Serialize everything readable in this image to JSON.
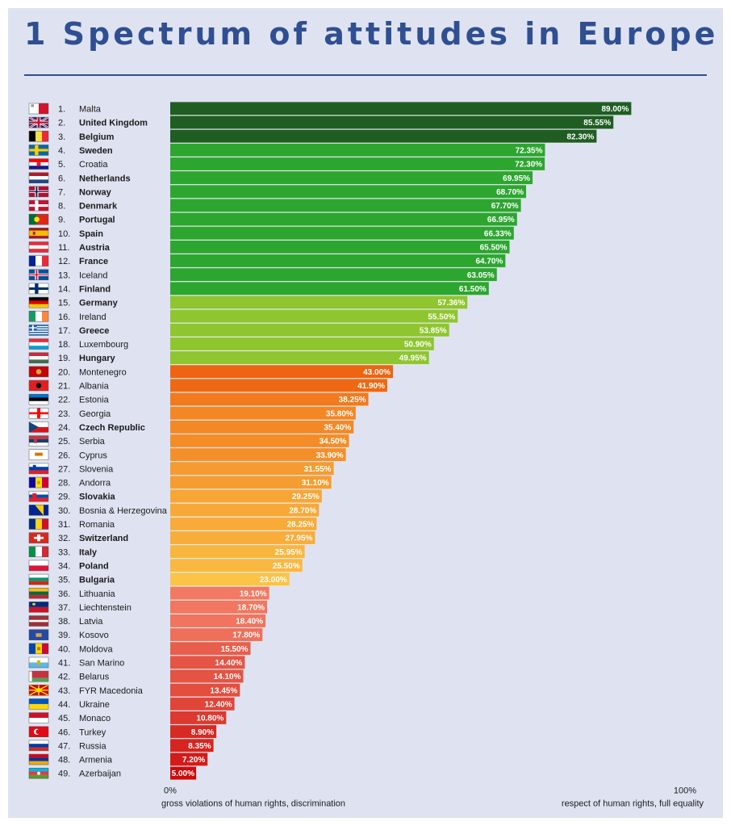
{
  "title": "1 Spectrum of attitudes in Europe",
  "colors": {
    "title": "#2f4f92",
    "background": "#dfe3f1",
    "tier_darkgreen": "#1f5d22",
    "tier_green": "#2da630",
    "tier_lime": "#8fc52f",
    "tier_orange_start": "#ee6411",
    "tier_orange_end": "#fbc447",
    "tier_red_start": "#f27a62",
    "tier_red_end": "#cc0b0b"
  },
  "chart_data": {
    "type": "bar",
    "orientation": "horizontal",
    "title": "1 Spectrum of attitudes in Europe",
    "xlim": [
      0,
      100
    ],
    "x_ticks": [
      "0%",
      "100%"
    ],
    "x_caption_left": "gross violations of human rights, discrimination",
    "x_caption_right": "respect of human rights, full equality",
    "grid": false,
    "legend": "none",
    "rows": [
      {
        "rank": "1.",
        "country": "Malta",
        "bold": false,
        "value": 89.0,
        "label": "89.00%",
        "flag": "malta-flag-icon"
      },
      {
        "rank": "2.",
        "country": "United Kingdom",
        "bold": true,
        "value": 85.55,
        "label": "85.55%",
        "flag": "united-kingdom-flag-icon"
      },
      {
        "rank": "3.",
        "country": "Belgium",
        "bold": true,
        "value": 82.3,
        "label": "82.30%",
        "flag": "belgium-flag-icon"
      },
      {
        "rank": "4.",
        "country": "Sweden",
        "bold": true,
        "value": 72.35,
        "label": "72.35%",
        "flag": "sweden-flag-icon"
      },
      {
        "rank": "5.",
        "country": "Croatia",
        "bold": false,
        "value": 72.3,
        "label": "72.30%",
        "flag": "croatia-flag-icon"
      },
      {
        "rank": "6.",
        "country": "Netherlands",
        "bold": true,
        "value": 69.95,
        "label": "69.95%",
        "flag": "netherlands-flag-icon"
      },
      {
        "rank": "7.",
        "country": "Norway",
        "bold": true,
        "value": 68.7,
        "label": "68.70%",
        "flag": "norway-flag-icon"
      },
      {
        "rank": "8.",
        "country": "Denmark",
        "bold": true,
        "value": 67.7,
        "label": "67.70%",
        "flag": "denmark-flag-icon"
      },
      {
        "rank": "9.",
        "country": "Portugal",
        "bold": true,
        "value": 66.95,
        "label": "66.95%",
        "flag": "portugal-flag-icon"
      },
      {
        "rank": "10.",
        "country": "Spain",
        "bold": true,
        "value": 66.33,
        "label": "66.33%",
        "flag": "spain-flag-icon"
      },
      {
        "rank": "11.",
        "country": "Austria",
        "bold": true,
        "value": 65.5,
        "label": "65.50%",
        "flag": "austria-flag-icon"
      },
      {
        "rank": "12.",
        "country": "France",
        "bold": true,
        "value": 64.7,
        "label": "64.70%",
        "flag": "france-flag-icon"
      },
      {
        "rank": "13.",
        "country": "Iceland",
        "bold": false,
        "value": 63.05,
        "label": "63.05%",
        "flag": "iceland-flag-icon"
      },
      {
        "rank": "14.",
        "country": "Finland",
        "bold": true,
        "value": 61.5,
        "label": "61.50%",
        "flag": "finland-flag-icon"
      },
      {
        "rank": "15.",
        "country": "Germany",
        "bold": true,
        "value": 57.36,
        "label": "57.36%",
        "flag": "germany-flag-icon"
      },
      {
        "rank": "16.",
        "country": "Ireland",
        "bold": false,
        "value": 55.5,
        "label": "55.50%",
        "flag": "ireland-flag-icon"
      },
      {
        "rank": "17.",
        "country": "Greece",
        "bold": true,
        "value": 53.85,
        "label": "53.85%",
        "flag": "greece-flag-icon"
      },
      {
        "rank": "18.",
        "country": "Luxembourg",
        "bold": false,
        "value": 50.9,
        "label": "50.90%",
        "flag": "luxembourg-flag-icon"
      },
      {
        "rank": "19.",
        "country": "Hungary",
        "bold": true,
        "value": 49.95,
        "label": "49.95%",
        "flag": "hungary-flag-icon"
      },
      {
        "rank": "20.",
        "country": "Montenegro",
        "bold": false,
        "value": 43.0,
        "label": "43.00%",
        "flag": "montenegro-flag-icon"
      },
      {
        "rank": "21.",
        "country": "Albania",
        "bold": false,
        "value": 41.9,
        "label": "41.90%",
        "flag": "albania-flag-icon"
      },
      {
        "rank": "22.",
        "country": "Estonia",
        "bold": false,
        "value": 38.25,
        "label": "38.25%",
        "flag": "estonia-flag-icon"
      },
      {
        "rank": "23.",
        "country": "Georgia",
        "bold": false,
        "value": 35.8,
        "label": "35.80%",
        "flag": "georgia-flag-icon"
      },
      {
        "rank": "24.",
        "country": "Czech Republic",
        "bold": true,
        "value": 35.4,
        "label": "35.40%",
        "flag": "czech-republic-flag-icon"
      },
      {
        "rank": "25.",
        "country": "Serbia",
        "bold": false,
        "value": 34.5,
        "label": "34.50%",
        "flag": "serbia-flag-icon"
      },
      {
        "rank": "26.",
        "country": "Cyprus",
        "bold": false,
        "value": 33.9,
        "label": "33.90%",
        "flag": "cyprus-flag-icon"
      },
      {
        "rank": "27.",
        "country": "Slovenia",
        "bold": false,
        "value": 31.55,
        "label": "31.55%",
        "flag": "slovenia-flag-icon"
      },
      {
        "rank": "28.",
        "country": "Andorra",
        "bold": false,
        "value": 31.1,
        "label": "31.10%",
        "flag": "andorra-flag-icon"
      },
      {
        "rank": "29.",
        "country": "Slovakia",
        "bold": true,
        "value": 29.25,
        "label": "29.25%",
        "flag": "slovakia-flag-icon"
      },
      {
        "rank": "30.",
        "country": "Bosnia & Herzegovina",
        "bold": false,
        "value": 28.7,
        "label": "28.70%",
        "flag": "bosnia-herzegovina-flag-icon"
      },
      {
        "rank": "31.",
        "country": "Romania",
        "bold": false,
        "value": 28.25,
        "label": "28.25%",
        "flag": "romania-flag-icon"
      },
      {
        "rank": "32.",
        "country": "Switzerland",
        "bold": true,
        "value": 27.95,
        "label": "27.95%",
        "flag": "switzerland-flag-icon"
      },
      {
        "rank": "33.",
        "country": "Italy",
        "bold": true,
        "value": 25.95,
        "label": "25.95%",
        "flag": "italy-flag-icon"
      },
      {
        "rank": "34.",
        "country": "Poland",
        "bold": true,
        "value": 25.5,
        "label": "25.50%",
        "flag": "poland-flag-icon"
      },
      {
        "rank": "35.",
        "country": "Bulgaria",
        "bold": true,
        "value": 23.0,
        "label": "23.00%",
        "flag": "bulgaria-flag-icon"
      },
      {
        "rank": "36.",
        "country": "Lithuania",
        "bold": false,
        "value": 19.1,
        "label": "19.10%",
        "flag": "lithuania-flag-icon"
      },
      {
        "rank": "37.",
        "country": "Liechtenstein",
        "bold": false,
        "value": 18.7,
        "label": "18.70%",
        "flag": "liechtenstein-flag-icon"
      },
      {
        "rank": "38.",
        "country": "Latvia",
        "bold": false,
        "value": 18.4,
        "label": "18.40%",
        "flag": "latvia-flag-icon"
      },
      {
        "rank": "39.",
        "country": "Kosovo",
        "bold": false,
        "value": 17.8,
        "label": "17.80%",
        "flag": "kosovo-flag-icon"
      },
      {
        "rank": "40.",
        "country": "Moldova",
        "bold": false,
        "value": 15.5,
        "label": "15.50%",
        "flag": "moldova-flag-icon"
      },
      {
        "rank": "41.",
        "country": "San Marino",
        "bold": false,
        "value": 14.4,
        "label": "14.40%",
        "flag": "san-marino-flag-icon"
      },
      {
        "rank": "42.",
        "country": "Belarus",
        "bold": false,
        "value": 14.1,
        "label": "14.10%",
        "flag": "belarus-flag-icon"
      },
      {
        "rank": "43.",
        "country": "FYR Macedonia",
        "bold": false,
        "value": 13.45,
        "label": "13.45%",
        "flag": "macedonia-flag-icon"
      },
      {
        "rank": "44.",
        "country": "Ukraine",
        "bold": false,
        "value": 12.4,
        "label": "12.40%",
        "flag": "ukraine-flag-icon"
      },
      {
        "rank": "45.",
        "country": "Monaco",
        "bold": false,
        "value": 10.8,
        "label": "10.80%",
        "flag": "monaco-flag-icon"
      },
      {
        "rank": "46.",
        "country": "Turkey",
        "bold": false,
        "value": 8.9,
        "label": "8.90%",
        "flag": "turkey-flag-icon"
      },
      {
        "rank": "47.",
        "country": "Russia",
        "bold": false,
        "value": 8.35,
        "label": "8.35%",
        "flag": "russia-flag-icon"
      },
      {
        "rank": "48.",
        "country": "Armenia",
        "bold": false,
        "value": 7.2,
        "label": "7.20%",
        "flag": "armenia-flag-icon"
      },
      {
        "rank": "49.",
        "country": "Azerbaijan",
        "bold": false,
        "value": 5.0,
        "label": "5.00%",
        "flag": "azerbaijan-flag-icon"
      }
    ]
  }
}
